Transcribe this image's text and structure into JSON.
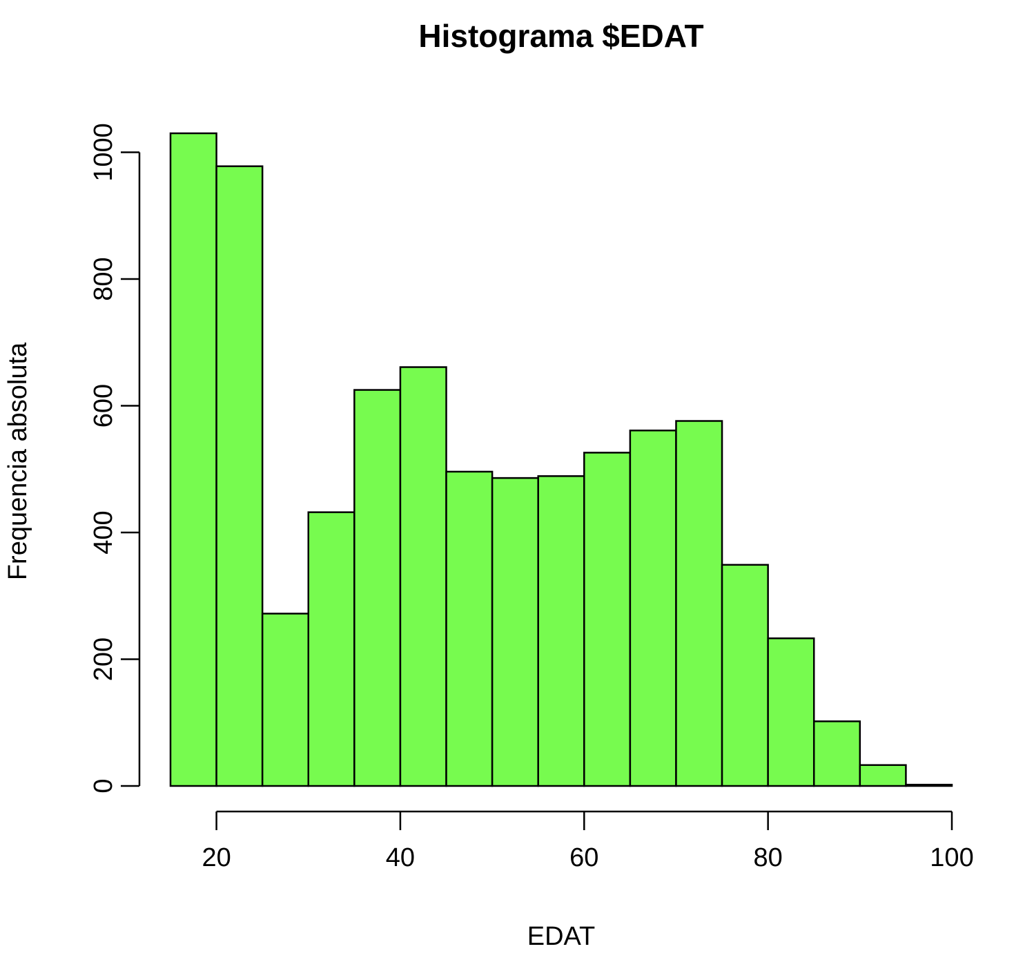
{
  "chart_data": {
    "type": "bar",
    "title": "Histograma $EDAT",
    "xlabel": "EDAT",
    "ylabel": "Frequencia absoluta",
    "bin_edges": [
      15,
      20,
      25,
      30,
      35,
      40,
      45,
      50,
      55,
      60,
      65,
      70,
      75,
      80,
      85,
      90,
      95,
      100
    ],
    "values": [
      1030,
      978,
      272,
      432,
      625,
      661,
      496,
      486,
      489,
      526,
      561,
      576,
      349,
      233,
      102,
      33,
      2
    ],
    "xlim": [
      15,
      100
    ],
    "ylim": [
      0,
      1030
    ],
    "x_ticks": [
      20,
      40,
      60,
      80,
      100
    ],
    "y_ticks": [
      0,
      200,
      400,
      600,
      800,
      1000
    ],
    "x_tick_labels": [
      "20",
      "40",
      "60",
      "80",
      "100"
    ],
    "y_tick_labels": [
      "0",
      "200",
      "400",
      "600",
      "800",
      "1000"
    ],
    "bar_color": "#77fb4f",
    "grid": false,
    "legend": "none"
  }
}
